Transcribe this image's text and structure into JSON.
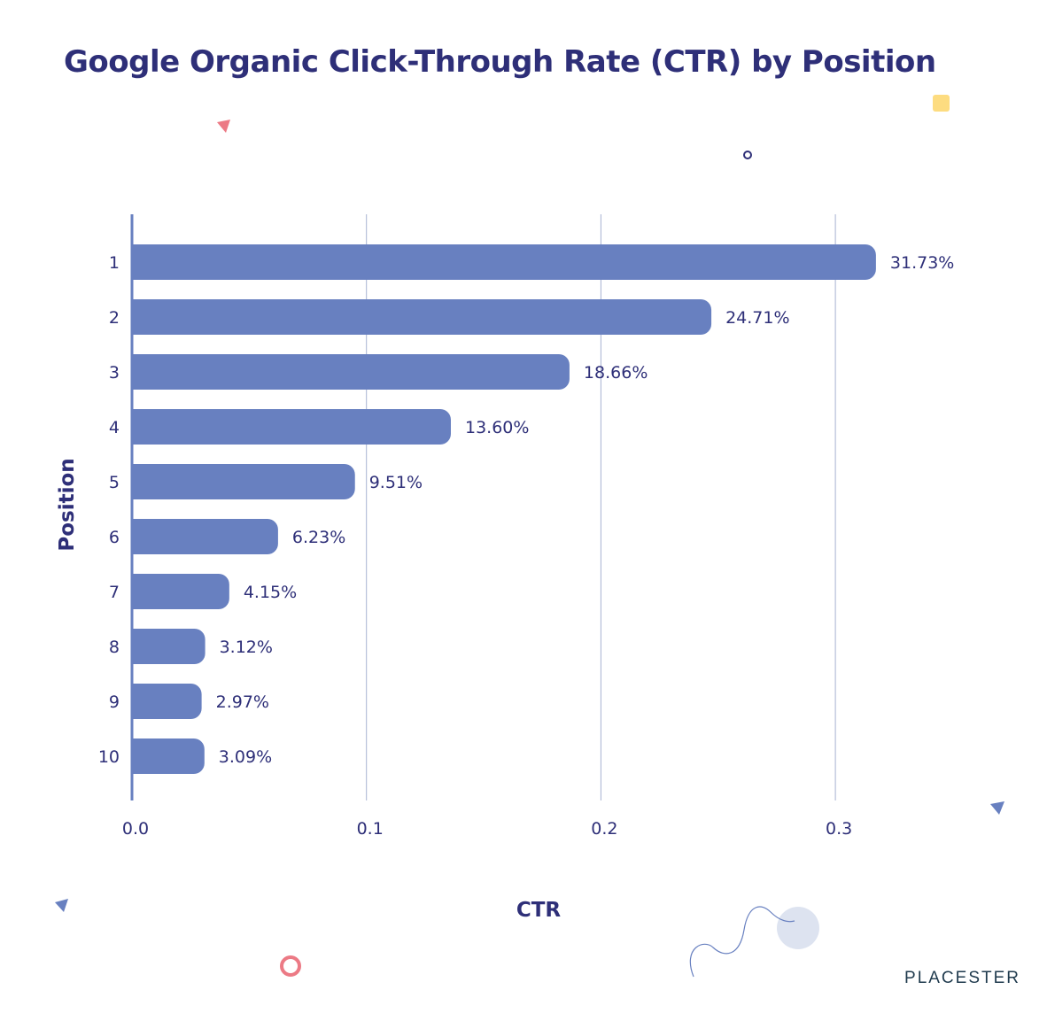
{
  "chart_data": {
    "type": "bar",
    "orientation": "horizontal",
    "title": "Google Organic Click-Through Rate (CTR) by Position",
    "xlabel": "CTR",
    "ylabel": "Position",
    "categories": [
      "1",
      "2",
      "3",
      "4",
      "5",
      "6",
      "7",
      "8",
      "9",
      "10"
    ],
    "values": [
      0.3173,
      0.2471,
      0.1866,
      0.136,
      0.0951,
      0.0623,
      0.0415,
      0.0312,
      0.0297,
      0.0309
    ],
    "data_labels": [
      "31.73%",
      "24.71%",
      "18.66%",
      "13.60%",
      "9.51%",
      "6.23%",
      "4.15%",
      "3.12%",
      "2.97%",
      "3.09%"
    ],
    "xlim": [
      0,
      0.3
    ],
    "xticks": [
      "0.0",
      "0.1",
      "0.2",
      "0.3"
    ],
    "grid": "vertical",
    "legend": "none",
    "colors": {
      "bar": "#6880c0",
      "text": "#2e2f78",
      "grid": "#a7b2d2"
    }
  },
  "brand": "PLACESTER"
}
